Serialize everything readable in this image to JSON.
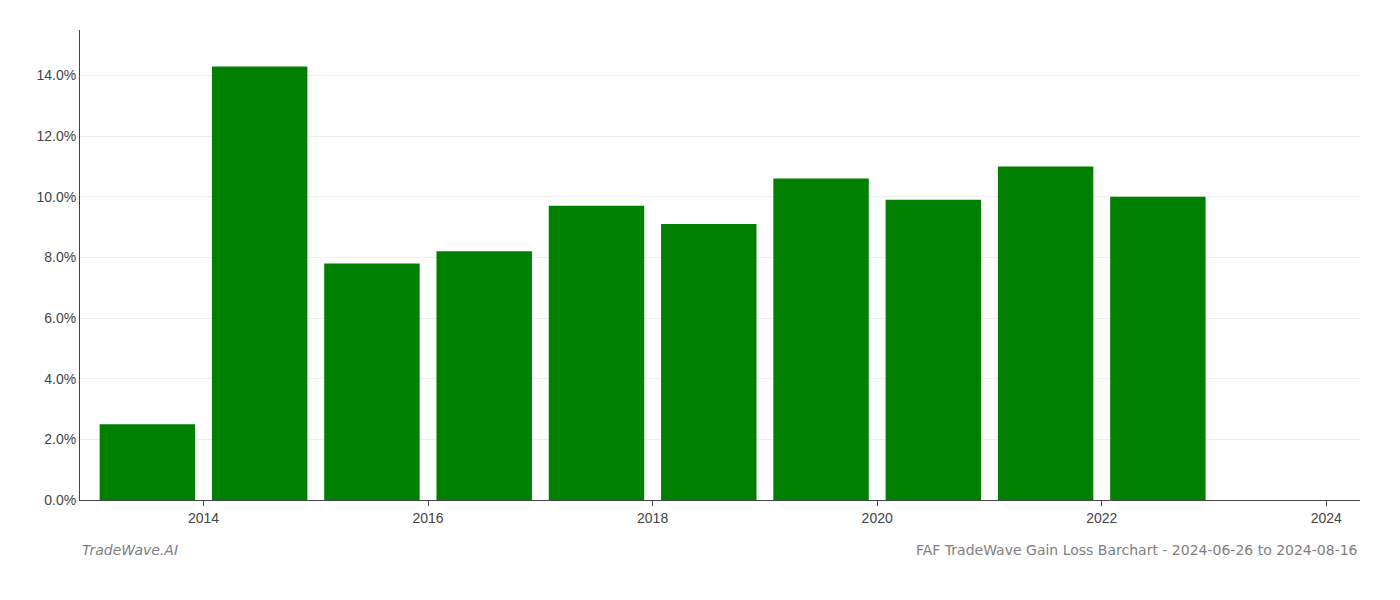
{
  "chart_data": {
    "type": "bar",
    "x": [
      2014,
      2015,
      2016,
      2017,
      2018,
      2019,
      2020,
      2021,
      2022,
      2023
    ],
    "values": [
      0.025,
      0.143,
      0.078,
      0.082,
      0.097,
      0.091,
      0.106,
      0.099,
      0.11,
      0.1
    ],
    "color": "#008000",
    "xlim": [
      2013.4,
      2024.8
    ],
    "xticks": [
      {
        "value": 2014.5,
        "label": "2014"
      },
      {
        "value": 2016.5,
        "label": "2016"
      },
      {
        "value": 2018.5,
        "label": "2018"
      },
      {
        "value": 2020.5,
        "label": "2020"
      },
      {
        "value": 2022.5,
        "label": "2022"
      },
      {
        "value": 2024.5,
        "label": "2024"
      }
    ],
    "ylim": [
      0,
      0.155
    ],
    "yticks": [
      {
        "value": 0.0,
        "label": "0.0%"
      },
      {
        "value": 0.02,
        "label": "2.0%"
      },
      {
        "value": 0.04,
        "label": "4.0%"
      },
      {
        "value": 0.06,
        "label": "6.0%"
      },
      {
        "value": 0.08,
        "label": "8.0%"
      },
      {
        "value": 0.1,
        "label": "10.0%"
      },
      {
        "value": 0.12,
        "label": "12.0%"
      },
      {
        "value": 0.14,
        "label": "14.0%"
      }
    ],
    "grid": true,
    "annotations": [
      "TradeWave.AI",
      "FAF TradeWave Gain Loss Barchart - 2024-06-26 to 2024-08-16"
    ]
  }
}
